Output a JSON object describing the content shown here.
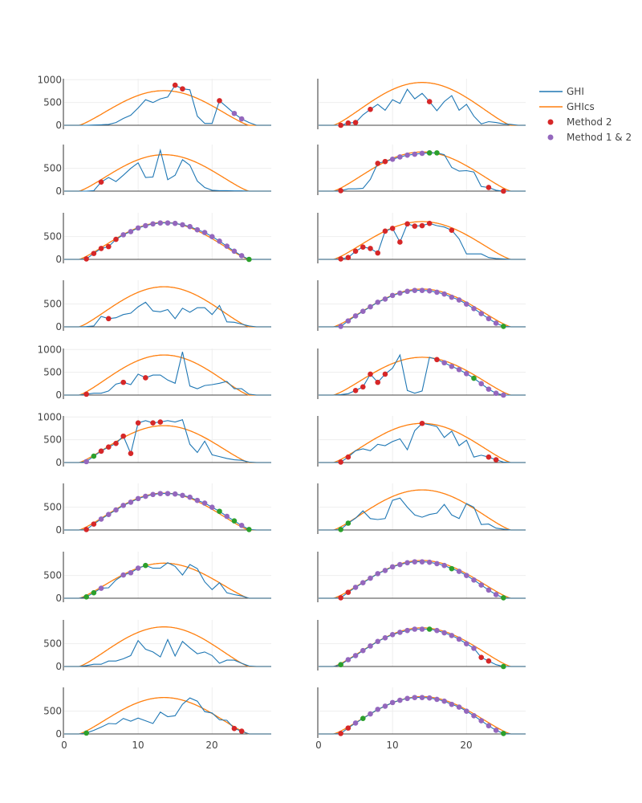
{
  "chart_data": {
    "type": "line",
    "layout": "subplot-grid",
    "rows": 10,
    "cols": 2,
    "xlim": [
      0,
      28
    ],
    "ylim": [
      0,
      1000
    ],
    "x_ticks": [
      0,
      10,
      20
    ],
    "x_tick_labels": [
      "0",
      "10",
      "20"
    ],
    "y_tick_labels_full": [
      "0",
      "500",
      "1000"
    ],
    "y_tick_labels_short": [
      "0",
      "500"
    ],
    "grid": true,
    "legend_position": "top-right",
    "legend": [
      {
        "key": "ghi",
        "label": "GHI",
        "kind": "line",
        "color": "#1f77b4"
      },
      {
        "key": "ghics",
        "label": "GHIcs",
        "kind": "line",
        "color": "#ff7f0e"
      },
      {
        "key": "m2",
        "label": "Method 2",
        "kind": "marker",
        "color": "#d62728"
      },
      {
        "key": "m12",
        "label": "Method 1 & 2",
        "kind": "marker",
        "color": "#9467bd"
      }
    ],
    "extra_marker_color": "#2ca02c",
    "panels": [
      {
        "id": "r1c1",
        "show_yticks": true,
        "show_1000": true,
        "cs_peak": 760,
        "cs_start": 2,
        "cs_end": 25,
        "ghi": [
          0,
          0,
          0,
          0,
          5,
          10,
          20,
          60,
          150,
          220,
          380,
          560,
          500,
          580,
          620,
          880,
          800,
          780,
          200,
          40,
          40,
          540,
          400,
          260,
          140,
          60,
          0,
          0,
          0
        ],
        "m2": [
          15,
          16,
          21
        ],
        "m12": [
          23,
          24
        ],
        "other": []
      },
      {
        "id": "r1c2",
        "show_yticks": false,
        "show_1000": false,
        "cs_peak": 940,
        "cs_start": 2,
        "cs_end": 26,
        "ghi": [
          0,
          0,
          0,
          0,
          50,
          60,
          230,
          350,
          460,
          330,
          560,
          480,
          790,
          580,
          700,
          520,
          320,
          520,
          650,
          330,
          460,
          200,
          30,
          80,
          60,
          30,
          20,
          0,
          0
        ],
        "m2": [
          3,
          4,
          5,
          7,
          15
        ],
        "m12": [],
        "other": []
      },
      {
        "id": "r2c1",
        "show_yticks": true,
        "show_1000": false,
        "cs_peak": 800,
        "cs_start": 2,
        "cs_end": 25,
        "ghi": [
          0,
          0,
          0,
          0,
          10,
          200,
          300,
          210,
          350,
          500,
          620,
          300,
          310,
          900,
          250,
          350,
          690,
          570,
          220,
          80,
          20,
          10,
          10,
          5,
          5,
          0,
          0,
          0,
          0
        ],
        "m2": [
          5
        ],
        "m12": [],
        "other": []
      },
      {
        "id": "r2c2",
        "show_yticks": false,
        "show_1000": false,
        "cs_peak": 860,
        "cs_start": 2,
        "cs_end": 26,
        "ghi": [
          0,
          0,
          0,
          10,
          50,
          50,
          60,
          260,
          610,
          650,
          700,
          750,
          790,
          810,
          830,
          840,
          840,
          800,
          520,
          440,
          450,
          420,
          100,
          80,
          20,
          0,
          0,
          0,
          0
        ],
        "m2": [
          3,
          8,
          9,
          23,
          25
        ],
        "m12": [
          10,
          11,
          12,
          13,
          14,
          15
        ],
        "other": [
          15,
          16
        ]
      },
      {
        "id": "r3c1",
        "show_yticks": true,
        "show_1000": false,
        "cs_peak": 810,
        "cs_start": 2,
        "cs_end": 25,
        "ghi": [
          0,
          0,
          0,
          10,
          130,
          240,
          280,
          440,
          540,
          610,
          690,
          740,
          780,
          800,
          800,
          790,
          760,
          720,
          650,
          590,
          500,
          400,
          290,
          180,
          80,
          0,
          0,
          0,
          0
        ],
        "m2": [
          3,
          4,
          5,
          6,
          7
        ],
        "m12": [
          8,
          9,
          10,
          11,
          12,
          13,
          14,
          15,
          16,
          17,
          18,
          19,
          20,
          21,
          22,
          23,
          24
        ],
        "other": [
          25
        ]
      },
      {
        "id": "r3c2",
        "show_yticks": false,
        "show_1000": false,
        "cs_peak": 830,
        "cs_start": 2,
        "cs_end": 26,
        "ghi": [
          0,
          0,
          0,
          10,
          40,
          180,
          270,
          240,
          140,
          620,
          680,
          380,
          780,
          730,
          740,
          790,
          740,
          710,
          640,
          450,
          120,
          120,
          120,
          40,
          20,
          10,
          0,
          0,
          0
        ],
        "m2": [
          3,
          4,
          5,
          6,
          7,
          8,
          9,
          10,
          11,
          12,
          13,
          14,
          15,
          18
        ],
        "m12": [],
        "other": []
      },
      {
        "id": "r4c1",
        "show_yticks": true,
        "show_1000": false,
        "cs_peak": 880,
        "cs_start": 2,
        "cs_end": 25,
        "ghi": [
          0,
          0,
          0,
          5,
          20,
          230,
          180,
          200,
          270,
          300,
          440,
          540,
          350,
          330,
          380,
          180,
          410,
          320,
          420,
          420,
          270,
          470,
          110,
          100,
          60,
          20,
          0,
          0,
          0
        ],
        "m2": [
          6
        ],
        "m12": [],
        "other": []
      },
      {
        "id": "r4c2",
        "show_yticks": false,
        "show_1000": false,
        "cs_peak": 830,
        "cs_start": 2,
        "cs_end": 26,
        "ghi": [
          0,
          0,
          0,
          10,
          130,
          240,
          340,
          440,
          540,
          610,
          690,
          740,
          780,
          800,
          800,
          790,
          760,
          720,
          650,
          590,
          500,
          400,
          290,
          180,
          80,
          10,
          0,
          0,
          0
        ],
        "m2": [],
        "m12": [
          3,
          4,
          5,
          6,
          7,
          8,
          9,
          10,
          11,
          12,
          13,
          14,
          15,
          16,
          17,
          18,
          19,
          20,
          21,
          22,
          23,
          24
        ],
        "other": [
          25
        ]
      },
      {
        "id": "r5c1",
        "show_yticks": true,
        "show_1000": true,
        "cs_peak": 880,
        "cs_start": 2,
        "cs_end": 25,
        "ghi": [
          0,
          0,
          0,
          20,
          40,
          40,
          90,
          240,
          280,
          230,
          460,
          380,
          440,
          440,
          330,
          260,
          950,
          200,
          140,
          210,
          230,
          260,
          300,
          140,
          140,
          20,
          0,
          0,
          0
        ],
        "m2": [
          3,
          8,
          11
        ],
        "m12": [],
        "other": []
      },
      {
        "id": "r5c2",
        "show_yticks": false,
        "show_1000": false,
        "cs_peak": 830,
        "cs_start": 2,
        "cs_end": 26,
        "ghi": [
          0,
          0,
          0,
          10,
          30,
          100,
          180,
          460,
          280,
          460,
          590,
          880,
          100,
          40,
          90,
          830,
          780,
          710,
          630,
          560,
          470,
          370,
          250,
          130,
          40,
          0,
          0,
          0,
          0
        ],
        "m2": [
          5,
          6,
          7,
          8,
          9,
          16
        ],
        "m12": [
          17,
          18,
          19,
          20,
          22,
          23,
          24,
          25
        ],
        "other": [
          21
        ]
      },
      {
        "id": "r6c1",
        "show_yticks": true,
        "show_1000": true,
        "cs_peak": 810,
        "cs_start": 2,
        "cs_end": 25,
        "ghi": [
          0,
          0,
          0,
          20,
          140,
          250,
          340,
          420,
          580,
          200,
          870,
          920,
          870,
          890,
          920,
          890,
          940,
          400,
          220,
          470,
          170,
          130,
          90,
          60,
          50,
          10,
          0,
          0,
          0
        ],
        "m2": [
          5,
          6,
          7,
          8,
          9,
          10,
          12,
          13
        ],
        "m12": [
          3,
          5
        ],
        "other": [
          4
        ]
      },
      {
        "id": "r6c2",
        "show_yticks": false,
        "show_1000": false,
        "cs_peak": 860,
        "cs_start": 2,
        "cs_end": 26,
        "ghi": [
          0,
          0,
          0,
          10,
          120,
          260,
          300,
          260,
          400,
          370,
          460,
          520,
          280,
          700,
          860,
          830,
          790,
          550,
          690,
          370,
          490,
          120,
          160,
          120,
          60,
          10,
          0,
          0,
          0
        ],
        "m2": [
          3,
          4,
          14,
          23,
          24
        ],
        "m12": [],
        "other": []
      },
      {
        "id": "r7c1",
        "show_yticks": true,
        "show_1000": false,
        "cs_peak": 810,
        "cs_start": 2,
        "cs_end": 25,
        "ghi": [
          0,
          0,
          0,
          10,
          130,
          240,
          340,
          440,
          540,
          610,
          690,
          740,
          780,
          800,
          800,
          790,
          760,
          720,
          650,
          590,
          500,
          410,
          300,
          200,
          100,
          10,
          0,
          0,
          0
        ],
        "m2": [
          3,
          4
        ],
        "m12": [
          5,
          6,
          7,
          8,
          9,
          10,
          11,
          12,
          13,
          14,
          15,
          16,
          17,
          18,
          19,
          20,
          22,
          24
        ],
        "other": [
          21,
          23,
          25
        ]
      },
      {
        "id": "r7c2",
        "show_yticks": false,
        "show_1000": false,
        "cs_peak": 880,
        "cs_start": 2,
        "cs_end": 26,
        "ghi": [
          0,
          0,
          0,
          10,
          150,
          260,
          420,
          250,
          230,
          250,
          650,
          700,
          500,
          330,
          280,
          340,
          370,
          560,
          330,
          250,
          580,
          500,
          120,
          130,
          40,
          20,
          0,
          0,
          0
        ],
        "m2": [],
        "m12": [],
        "other": [
          3,
          4
        ]
      },
      {
        "id": "r8c1",
        "show_yticks": true,
        "show_1000": false,
        "cs_peak": 770,
        "cs_start": 2,
        "cs_end": 25,
        "ghi": [
          0,
          0,
          0,
          30,
          120,
          220,
          230,
          400,
          510,
          560,
          660,
          720,
          660,
          660,
          780,
          700,
          510,
          740,
          650,
          360,
          190,
          340,
          120,
          80,
          50,
          0,
          0,
          0,
          0
        ],
        "m2": [],
        "m12": [
          5,
          8,
          9,
          10
        ],
        "other": [
          3,
          4,
          11
        ]
      },
      {
        "id": "r8c2",
        "show_yticks": false,
        "show_1000": false,
        "cs_peak": 830,
        "cs_start": 2,
        "cs_end": 26,
        "ghi": [
          0,
          0,
          0,
          10,
          130,
          240,
          340,
          440,
          540,
          610,
          690,
          740,
          780,
          800,
          800,
          790,
          760,
          720,
          650,
          590,
          500,
          400,
          290,
          180,
          80,
          10,
          0,
          0,
          0
        ],
        "m2": [
          3,
          4
        ],
        "m12": [
          5,
          6,
          7,
          8,
          9,
          10,
          11,
          12,
          13,
          14,
          15,
          16,
          17,
          19,
          20,
          21,
          22,
          23,
          24
        ],
        "other": [
          18,
          25
        ]
      },
      {
        "id": "r9c1",
        "show_yticks": true,
        "show_1000": false,
        "cs_peak": 870,
        "cs_start": 2,
        "cs_end": 25,
        "ghi": [
          0,
          0,
          0,
          20,
          50,
          50,
          120,
          120,
          170,
          240,
          570,
          380,
          320,
          210,
          590,
          230,
          550,
          410,
          280,
          320,
          240,
          70,
          140,
          140,
          70,
          10,
          0,
          0,
          0
        ],
        "m2": [],
        "m12": [],
        "other": []
      },
      {
        "id": "r9c2",
        "show_yticks": false,
        "show_1000": false,
        "cs_peak": 850,
        "cs_start": 2,
        "cs_end": 26,
        "ghi": [
          0,
          0,
          0,
          40,
          150,
          240,
          350,
          450,
          550,
          630,
          700,
          750,
          790,
          820,
          820,
          820,
          790,
          740,
          680,
          600,
          500,
          400,
          200,
          120,
          40,
          0,
          0,
          0,
          0
        ],
        "m2": [
          22,
          23
        ],
        "m12": [
          4,
          5,
          6,
          7,
          8,
          9,
          10,
          11,
          12,
          13,
          14,
          16,
          17,
          18,
          19,
          20,
          21
        ],
        "other": [
          3,
          15,
          25
        ]
      },
      {
        "id": "r10c1",
        "show_yticks": true,
        "show_1000": false,
        "cs_peak": 800,
        "cs_start": 2,
        "cs_end": 25,
        "ghi": [
          0,
          0,
          0,
          20,
          80,
          150,
          230,
          220,
          340,
          280,
          350,
          290,
          230,
          480,
          380,
          400,
          650,
          790,
          720,
          490,
          460,
          310,
          300,
          120,
          60,
          0,
          0,
          0,
          0
        ],
        "m2": [
          23,
          24
        ],
        "m12": [],
        "other": [
          3
        ]
      },
      {
        "id": "r10c2",
        "show_yticks": false,
        "show_1000": false,
        "cs_peak": 820,
        "cs_start": 2,
        "cs_end": 26,
        "ghi": [
          0,
          0,
          0,
          10,
          130,
          240,
          340,
          440,
          540,
          610,
          690,
          740,
          780,
          800,
          800,
          790,
          760,
          720,
          650,
          590,
          500,
          400,
          290,
          180,
          80,
          10,
          0,
          0,
          0
        ],
        "m2": [
          3,
          4
        ],
        "m12": [
          5,
          7,
          8,
          9,
          10,
          11,
          12,
          13,
          14,
          15,
          16,
          17,
          18,
          19,
          20,
          21,
          22,
          23,
          24
        ],
        "other": [
          6,
          25
        ]
      }
    ]
  }
}
